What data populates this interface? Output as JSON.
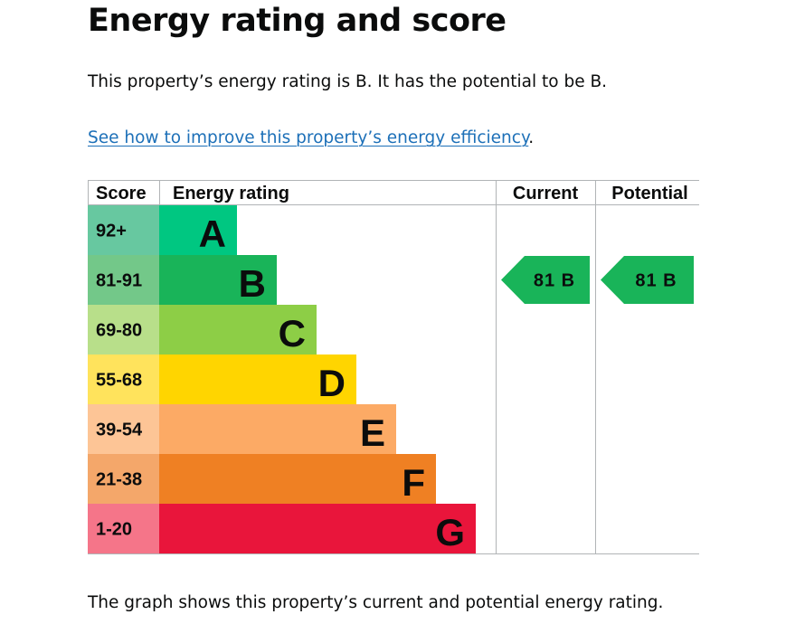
{
  "page": {
    "heading": "Energy rating and score",
    "summary": "This property’s energy rating is B. It has the potential to be B.",
    "improve_link": "See how to improve this property’s energy efficiency",
    "improve_link_suffix": ".",
    "caption": "The graph shows this property’s current and potential energy rating."
  },
  "chart_data": {
    "type": "bar",
    "headers": {
      "score": "Score",
      "rating": "Energy rating",
      "current": "Current",
      "potential": "Potential"
    },
    "bands": [
      {
        "letter": "A",
        "range": "92+",
        "color": "#00c781",
        "score_bg": "#67c8a0"
      },
      {
        "letter": "B",
        "range": "81-91",
        "color": "#19b459",
        "score_bg": "#73c889"
      },
      {
        "letter": "C",
        "range": "69-80",
        "color": "#8dce46",
        "score_bg": "#b8df8a"
      },
      {
        "letter": "D",
        "range": "55-68",
        "color": "#ffd500",
        "score_bg": "#ffe35c"
      },
      {
        "letter": "E",
        "range": "39-54",
        "color": "#fcaa65",
        "score_bg": "#fdc596"
      },
      {
        "letter": "F",
        "range": "21-38",
        "color": "#ef8023",
        "score_bg": "#f4a76a"
      },
      {
        "letter": "G",
        "range": "1-20",
        "color": "#e9153b",
        "score_bg": "#f57589"
      }
    ],
    "current": {
      "score": 81,
      "letter": "B",
      "label": "81 B",
      "color": "#19b459"
    },
    "potential": {
      "score": 81,
      "letter": "B",
      "label": "81 B",
      "color": "#19b459"
    },
    "grid_color": "#b1b4b6",
    "text_color": "#0b0c0c"
  }
}
